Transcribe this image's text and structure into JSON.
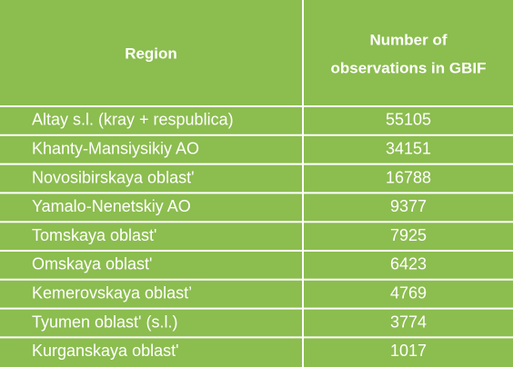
{
  "table": {
    "header": [
      "Region",
      [
        "Number of",
        "observations in GBIF"
      ]
    ],
    "rows": [
      [
        "Altay s.l. (kray + respublica)",
        55105
      ],
      [
        "Khanty-Mansiysikiy  AO",
        34151
      ],
      [
        "Novosibirskaya oblast'",
        16788
      ],
      [
        "Yamalo-Nenetskiy  AO",
        9377
      ],
      [
        "Tomskaya oblast'",
        7925
      ],
      [
        "Omskaya oblast'",
        6423
      ],
      [
        "Kemerovskaya oblast’",
        4769
      ],
      [
        "Tyumen oblast' (s.l.)",
        3774
      ],
      [
        "Kurganskaya  oblast'",
        1017
      ]
    ]
  }
}
